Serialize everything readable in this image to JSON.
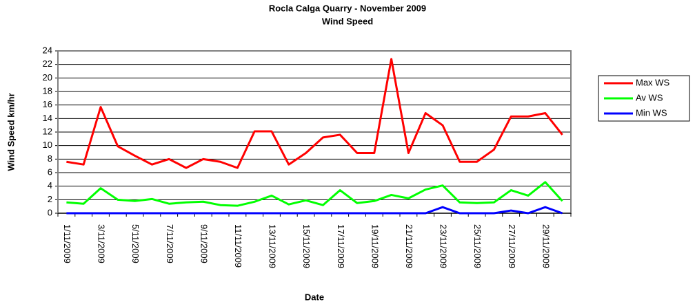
{
  "chart_data": {
    "type": "line",
    "title": "Rocla Calga Quarry - November 2009",
    "subtitle": "Wind Speed",
    "x_label": "Date",
    "y_label": "Wind Speed km/hr",
    "categories": [
      "1/11/2009",
      null,
      "3/11/2009",
      null,
      "5/11/2009",
      null,
      "7/11/2009",
      null,
      "9/11/2009",
      null,
      "11/11/2009",
      null,
      "13/11/2009",
      null,
      "15/11/2009",
      null,
      "17/11/2009",
      null,
      "19/11/2009",
      null,
      "21/11/2009",
      null,
      "23/11/2009",
      null,
      "25/11/2009",
      null,
      "27/11/2009",
      null,
      "29/11/2009",
      null
    ],
    "series": [
      {
        "name": "Max WS",
        "color": "#ff0000",
        "values": [
          7.6,
          7.2,
          15.7,
          9.9,
          8.5,
          7.2,
          8.0,
          6.7,
          8.0,
          7.6,
          6.7,
          12.1,
          12.1,
          7.2,
          8.9,
          11.2,
          11.6,
          8.9,
          8.9,
          22.8,
          8.9,
          14.8,
          13.0,
          7.6,
          7.6,
          9.4,
          14.3,
          14.3,
          14.8,
          11.6
        ]
      },
      {
        "name": "Av WS",
        "color": "#00ff00",
        "values": [
          1.6,
          1.4,
          3.7,
          2.0,
          1.8,
          2.1,
          1.4,
          1.6,
          1.7,
          1.2,
          1.1,
          1.7,
          2.6,
          1.3,
          1.9,
          1.2,
          3.4,
          1.5,
          1.8,
          2.7,
          2.2,
          3.5,
          4.1,
          1.6,
          1.5,
          1.6,
          3.4,
          2.6,
          4.6,
          1.8
        ]
      },
      {
        "name": "Min WS",
        "color": "#0000ff",
        "values": [
          0,
          0,
          0,
          0,
          0,
          0,
          0,
          0,
          0,
          0,
          0,
          0,
          0,
          0,
          0,
          0,
          0,
          0,
          0,
          0,
          0,
          0,
          0.9,
          0,
          0,
          0,
          0.4,
          0,
          0.9,
          0
        ]
      }
    ],
    "ylim": [
      0,
      24
    ],
    "yticks": [
      0,
      2,
      4,
      6,
      8,
      10,
      12,
      14,
      16,
      18,
      20,
      22,
      24
    ],
    "grid": true,
    "legend": "right"
  }
}
